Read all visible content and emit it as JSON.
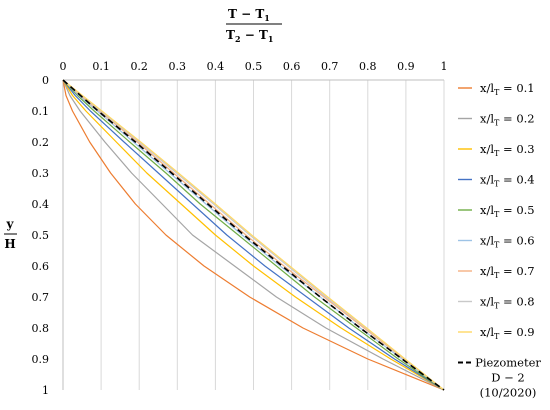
{
  "chart_data": {
    "type": "line",
    "title": {
      "numerator": "T − T",
      "numerator_sub": "1",
      "denominator_a": "T",
      "denominator_a_sub": "2",
      "denominator_b": " − T",
      "denominator_b_sub": "1"
    },
    "ylabel": {
      "numerator": "y",
      "denominator": "H"
    },
    "x_ticks": [
      "0",
      "0.1",
      "0.2",
      "0.3",
      "0.4",
      "0.5",
      "0.6",
      "0.7",
      "0.8",
      "0.9",
      "1"
    ],
    "y_ticks": [
      "0",
      "0.1",
      "0.2",
      "0.3",
      "0.4",
      "0.5",
      "0.6",
      "0.7",
      "0.8",
      "0.9",
      "1"
    ],
    "xlim": [
      0,
      1
    ],
    "ylim": [
      0,
      1
    ],
    "x_axis_position": "top",
    "y_axis_inverted": true,
    "grid": "vertical",
    "legend_position": "right",
    "y_points": [
      0,
      0.05,
      0.1,
      0.2,
      0.3,
      0.4,
      0.5,
      0.6,
      0.7,
      0.8,
      0.9,
      1.0
    ],
    "series": [
      {
        "name": "0.1",
        "color": "#ED7D31",
        "dash": false,
        "x": [
          0,
          0.008,
          0.025,
          0.07,
          0.125,
          0.19,
          0.27,
          0.37,
          0.49,
          0.63,
          0.8,
          1.0
        ]
      },
      {
        "name": "0.2",
        "color": "#A5A5A5",
        "dash": false,
        "x": [
          0,
          0.018,
          0.045,
          0.11,
          0.18,
          0.26,
          0.34,
          0.45,
          0.56,
          0.69,
          0.84,
          1.0
        ]
      },
      {
        "name": "0.3",
        "color": "#FFC000",
        "dash": false,
        "x": [
          0,
          0.025,
          0.06,
          0.14,
          0.22,
          0.31,
          0.4,
          0.5,
          0.61,
          0.73,
          0.86,
          1.0
        ]
      },
      {
        "name": "0.4",
        "color": "#4472C4",
        "dash": false,
        "x": [
          0,
          0.032,
          0.072,
          0.16,
          0.25,
          0.34,
          0.43,
          0.53,
          0.64,
          0.75,
          0.87,
          1.0
        ]
      },
      {
        "name": "0.5",
        "color": "#70AD47",
        "dash": false,
        "x": [
          0,
          0.038,
          0.082,
          0.175,
          0.27,
          0.36,
          0.46,
          0.56,
          0.66,
          0.77,
          0.88,
          1.0
        ]
      },
      {
        "name": "0.6",
        "color": "#9DC3E6",
        "dash": false,
        "x": [
          0,
          0.042,
          0.09,
          0.185,
          0.28,
          0.375,
          0.47,
          0.57,
          0.675,
          0.78,
          0.89,
          1.0
        ]
      },
      {
        "name": "0.7",
        "color": "#F4B183",
        "dash": false,
        "x": [
          0,
          0.046,
          0.095,
          0.195,
          0.29,
          0.385,
          0.48,
          0.58,
          0.685,
          0.79,
          0.895,
          1.0
        ]
      },
      {
        "name": "0.8",
        "color": "#C9C9C9",
        "dash": false,
        "x": [
          0,
          0.049,
          0.099,
          0.2,
          0.298,
          0.395,
          0.49,
          0.59,
          0.69,
          0.795,
          0.897,
          1.0
        ]
      },
      {
        "name": "0.9",
        "color": "#FFD966",
        "dash": false,
        "x": [
          0,
          0.051,
          0.102,
          0.204,
          0.303,
          0.4,
          0.495,
          0.595,
          0.695,
          0.797,
          0.898,
          1.0
        ]
      },
      {
        "name": "Piezometer D − 2 (10/2020)",
        "color": "#000000",
        "dash": true,
        "x": [
          0,
          0.046,
          0.092,
          0.19,
          0.285,
          0.38,
          0.475,
          0.575,
          0.675,
          0.78,
          0.89,
          1.0
        ]
      }
    ],
    "legend": {
      "prefix": "x/l",
      "prefix_sub": "T",
      "equals": " = ",
      "piezometer_lines": [
        "Piezometer",
        "D − 2",
        "(10/2020)"
      ]
    }
  }
}
